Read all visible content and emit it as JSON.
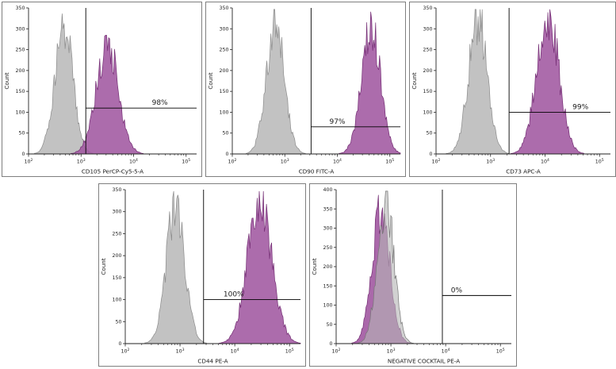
{
  "figure": {
    "description": "Flow cytometry surface marker histograms, five panels",
    "background": "#ffffff",
    "panel_border": "#7f7f7f",
    "axis_color": "#222222",
    "gate_color": "#000000"
  },
  "chart_data": [
    {
      "type": "histogram",
      "panel": "CD105",
      "xlabel": "CD105 PerCP-Cy5-5-A",
      "ylabel": "Count",
      "x_scale": "log",
      "x_log_range": [
        2,
        5.2
      ],
      "ylim": [
        0,
        350
      ],
      "y_tick_step": 50,
      "x_major_ticks": [
        2,
        3,
        4,
        5
      ],
      "seed": 11,
      "series": [
        {
          "name": "isotype-control-histogram",
          "fill": "#bdbdbd",
          "stroke": "#8b8b8b",
          "opacity": 0.92,
          "peak_log": 2.67,
          "sd": 0.17,
          "peak": 310
        },
        {
          "name": "stained-sample-histogram",
          "fill": "#a158a1",
          "stroke": "#732c73",
          "opacity": 0.88,
          "peak_log": 3.5,
          "sd": 0.21,
          "peak": 260
        }
      ],
      "gate": {
        "percent_label": "98%",
        "x_log": 3.09,
        "y_count": 110,
        "label_x_log": 4.5
      }
    },
    {
      "type": "histogram",
      "panel": "CD90",
      "xlabel": "CD90 FITC-A",
      "ylabel": "Count",
      "x_scale": "log",
      "x_log_range": [
        2,
        5.2
      ],
      "ylim": [
        0,
        350
      ],
      "y_tick_step": 50,
      "x_major_ticks": [
        2,
        3,
        4,
        5
      ],
      "seed": 22,
      "series": [
        {
          "name": "isotype-control-histogram",
          "fill": "#bdbdbd",
          "stroke": "#8b8b8b",
          "opacity": 0.92,
          "peak_log": 2.82,
          "sd": 0.17,
          "peak": 320
        },
        {
          "name": "stained-sample-histogram",
          "fill": "#a158a1",
          "stroke": "#732c73",
          "opacity": 0.88,
          "peak_log": 4.64,
          "sd": 0.18,
          "peak": 300
        }
      ],
      "gate": {
        "percent_label": "97%",
        "x_log": 3.5,
        "y_count": 65,
        "label_x_log": 4.0
      }
    },
    {
      "type": "histogram",
      "panel": "CD73",
      "xlabel": "CD73 APC-A",
      "ylabel": "Count",
      "x_scale": "log",
      "x_log_range": [
        2,
        5.2
      ],
      "ylim": [
        0,
        350
      ],
      "y_tick_step": 50,
      "x_major_ticks": [
        2,
        3,
        4,
        5
      ],
      "seed": 33,
      "series": [
        {
          "name": "isotype-control-histogram",
          "fill": "#bdbdbd",
          "stroke": "#8b8b8b",
          "opacity": 0.92,
          "peak_log": 2.77,
          "sd": 0.17,
          "peak": 325
        },
        {
          "name": "stained-sample-histogram",
          "fill": "#a158a1",
          "stroke": "#732c73",
          "opacity": 0.88,
          "peak_log": 4.05,
          "sd": 0.2,
          "peak": 335
        }
      ],
      "gate": {
        "percent_label": "99%",
        "x_log": 3.34,
        "y_count": 100,
        "label_x_log": 4.65
      }
    },
    {
      "type": "histogram",
      "panel": "CD44",
      "xlabel": "CD44 PE-A",
      "ylabel": "Count",
      "x_scale": "log",
      "x_log_range": [
        2,
        5.2
      ],
      "ylim": [
        0,
        350
      ],
      "y_tick_step": 50,
      "x_major_ticks": [
        2,
        3,
        4,
        5
      ],
      "seed": 44,
      "series": [
        {
          "name": "isotype-control-histogram",
          "fill": "#bdbdbd",
          "stroke": "#8b8b8b",
          "opacity": 0.92,
          "peak_log": 2.92,
          "sd": 0.17,
          "peak": 310
        },
        {
          "name": "stained-sample-histogram",
          "fill": "#a158a1",
          "stroke": "#732c73",
          "opacity": 0.88,
          "peak_log": 4.46,
          "sd": 0.22,
          "peak": 330
        }
      ],
      "gate": {
        "percent_label": "100%",
        "x_log": 3.43,
        "y_count": 100,
        "label_x_log": 3.98
      }
    },
    {
      "type": "histogram",
      "panel": "NEGATIVE COCKTAIL",
      "xlabel": "NEGATIVE COCKTAIL PE-A",
      "ylabel": "Count",
      "x_scale": "log",
      "x_log_range": [
        2,
        5.2
      ],
      "ylim": [
        0,
        400
      ],
      "y_tick_step": 50,
      "x_major_ticks": [
        2,
        3,
        4,
        5
      ],
      "seed": 55,
      "series": [
        {
          "name": "stained-sample-histogram",
          "fill": "#a158a1",
          "stroke": "#732c73",
          "opacity": 0.9,
          "peak_log": 2.82,
          "sd": 0.16,
          "peak": 360
        },
        {
          "name": "isotype-control-histogram",
          "fill": "#b5b5b5",
          "stroke": "#777777",
          "opacity": 0.62,
          "peak_log": 2.9,
          "sd": 0.15,
          "peak": 370
        }
      ],
      "gate": {
        "percent_label": "0%",
        "x_log": 3.94,
        "y_count": 125,
        "label_x_log": 4.2
      }
    }
  ]
}
